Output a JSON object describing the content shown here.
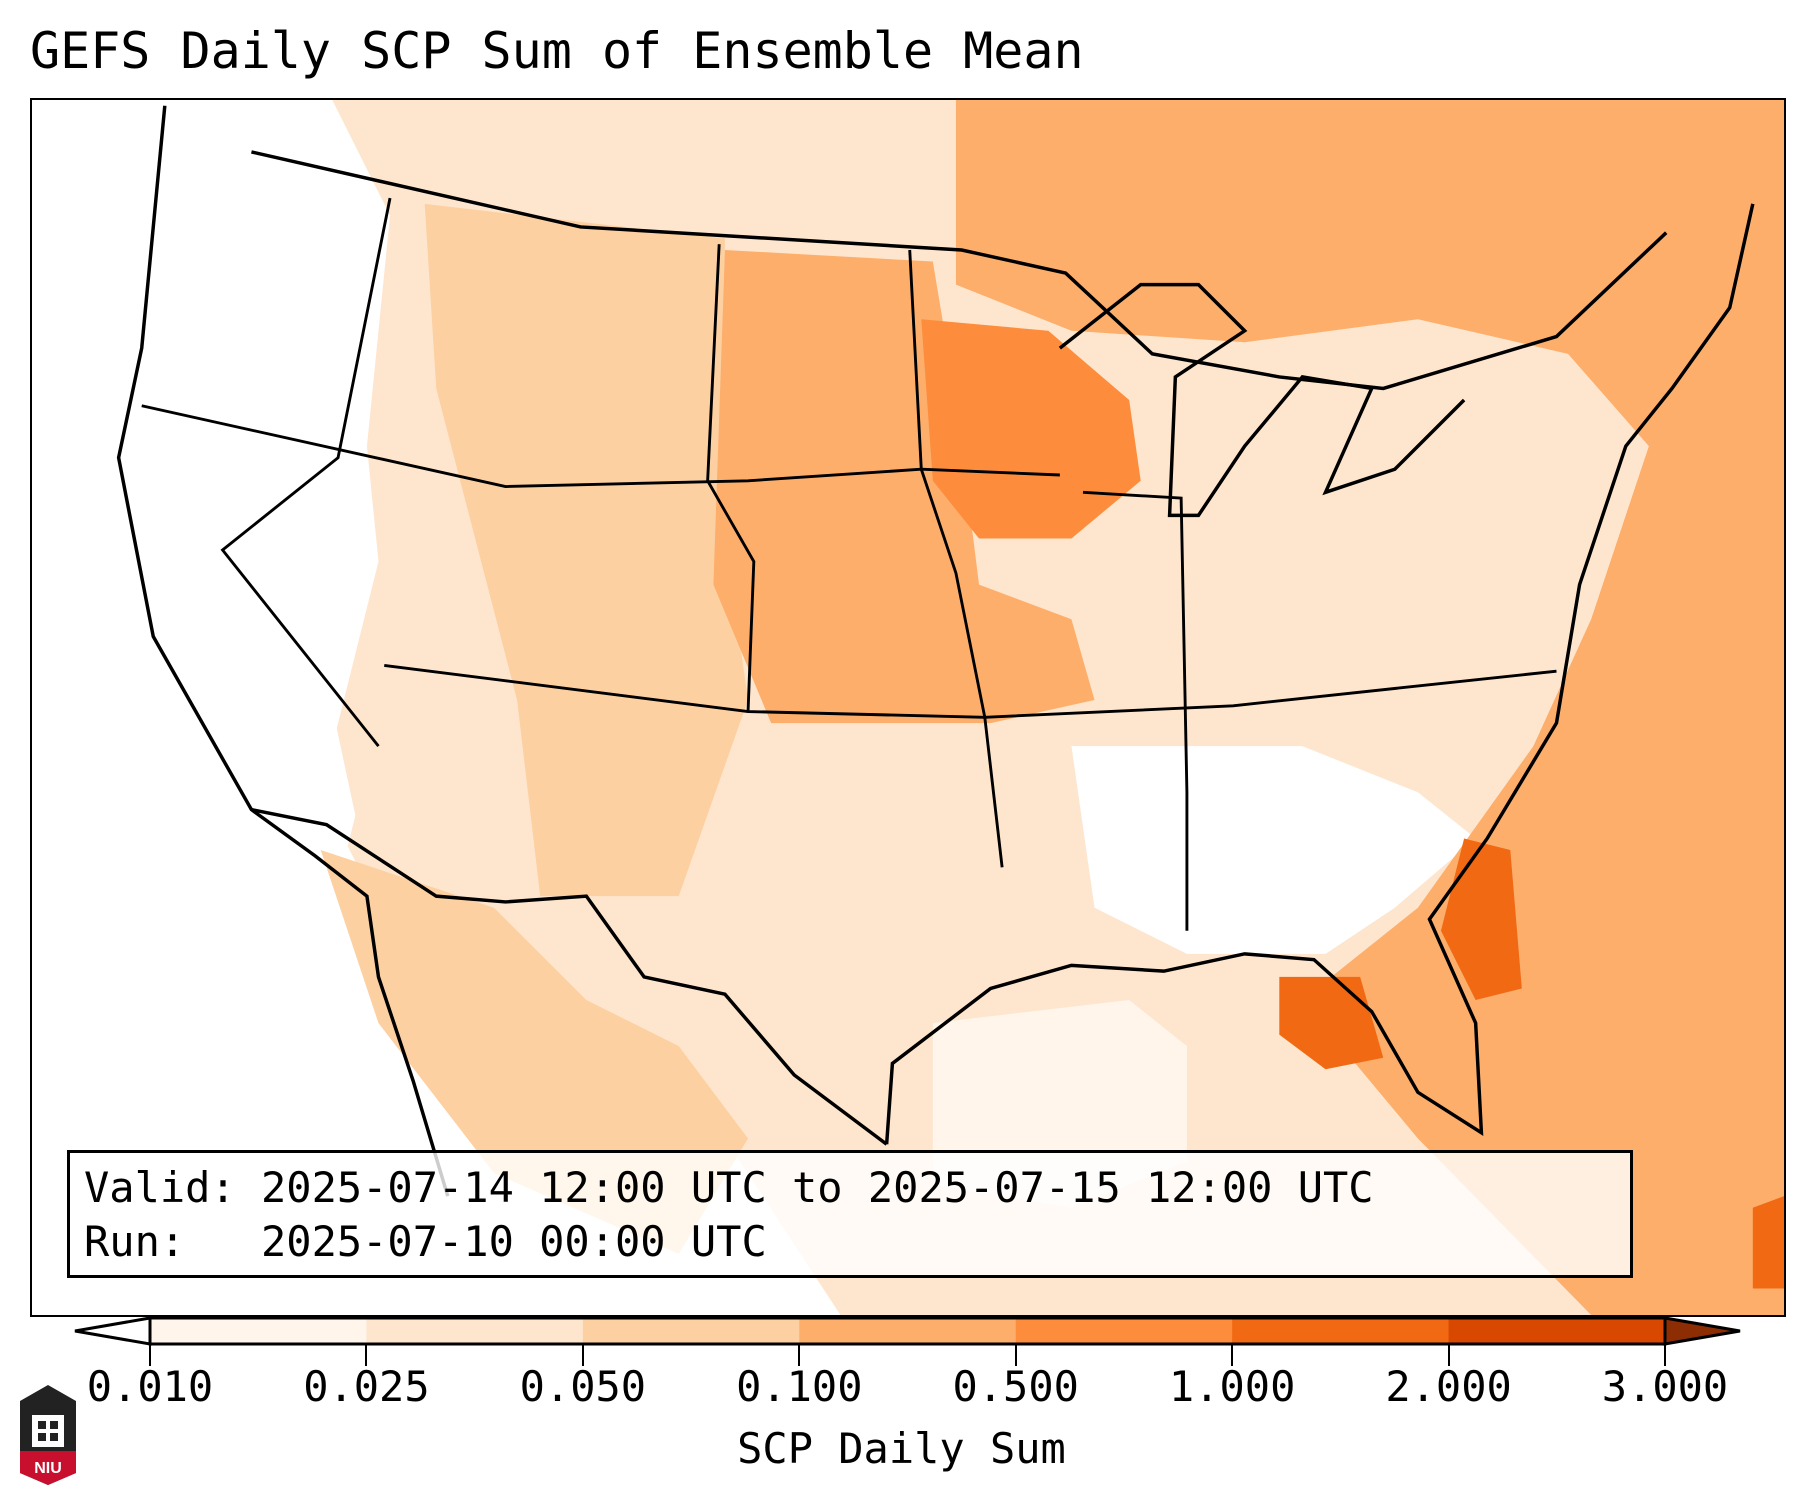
{
  "title": "GEFS Daily SCP Sum of Ensemble Mean",
  "info": {
    "valid_line": "Valid: 2025-07-14 12:00 UTC to 2025-07-15 12:00 UTC",
    "run_line": "Run:   2025-07-10 00:00 UTC"
  },
  "logo_text": "NIU",
  "chart_data": {
    "type": "heatmap",
    "title": "GEFS Daily SCP Sum of Ensemble Mean",
    "colorbar": {
      "label": "SCP Daily Sum",
      "levels": [
        "0.010",
        "0.025",
        "0.050",
        "0.100",
        "0.500",
        "1.000",
        "2.000",
        "3.000"
      ],
      "colors": [
        "#fff5eb",
        "#fee6ce",
        "#fdd0a2",
        "#fdae6b",
        "#fd8d3c",
        "#f16913",
        "#d94801"
      ],
      "under_color": "#ffffff",
      "over_color": "#8c2d04",
      "extend": "both"
    },
    "highlights": [
      {
        "region": "Wisconsin / Minnesota / Iowa",
        "range": "0.500-1.000"
      },
      {
        "region": "Northern Florida / Gulf coast",
        "range": "1.000-2.000"
      },
      {
        "region": "Offshore Southeast coast",
        "range": "1.000-2.000"
      },
      {
        "region": "Eastern Canada / Northern Plains",
        "range": "0.100-0.500"
      }
    ]
  }
}
